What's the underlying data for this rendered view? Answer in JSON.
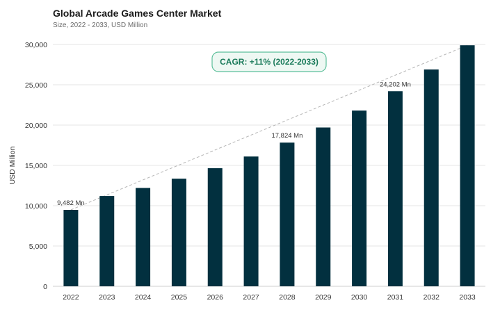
{
  "chart_data": {
    "type": "bar",
    "title": "Global Arcade Games Center Market",
    "subtitle": "Size, 2022 - 2033, USD Million",
    "ylabel": "USD Million",
    "xlabel": "",
    "ylim": [
      0,
      30000
    ],
    "yticks": [
      0,
      5000,
      10000,
      15000,
      20000,
      25000,
      30000
    ],
    "ytick_labels": [
      "0",
      "5,000",
      "10,000",
      "15,000",
      "20,000",
      "25,000",
      "30,000"
    ],
    "categories": [
      "2022",
      "2023",
      "2024",
      "2025",
      "2026",
      "2027",
      "2028",
      "2029",
      "2030",
      "2031",
      "2032",
      "2033"
    ],
    "values": [
      9482,
      11200,
      12200,
      13350,
      14650,
      16100,
      17824,
      19700,
      21800,
      24202,
      26900,
      29900
    ],
    "data_labels": [
      {
        "index": 0,
        "text": "9,482 Mn"
      },
      {
        "index": 6,
        "text": "17,824 Mn"
      },
      {
        "index": 9,
        "text": "24,202 Mn"
      }
    ],
    "annotation": "CAGR: +11% (2022-2033)",
    "trendline": {
      "from_index": 0,
      "to_index": 11,
      "style": "dashed"
    },
    "grid": true,
    "colors": {
      "bar": "#02303f",
      "annotation_border": "#5cbf9a",
      "annotation_fill": "#eef8f3",
      "annotation_text": "#1a7a5a",
      "trend": "#b5b5b5",
      "grid": "#e6e6e6"
    }
  }
}
